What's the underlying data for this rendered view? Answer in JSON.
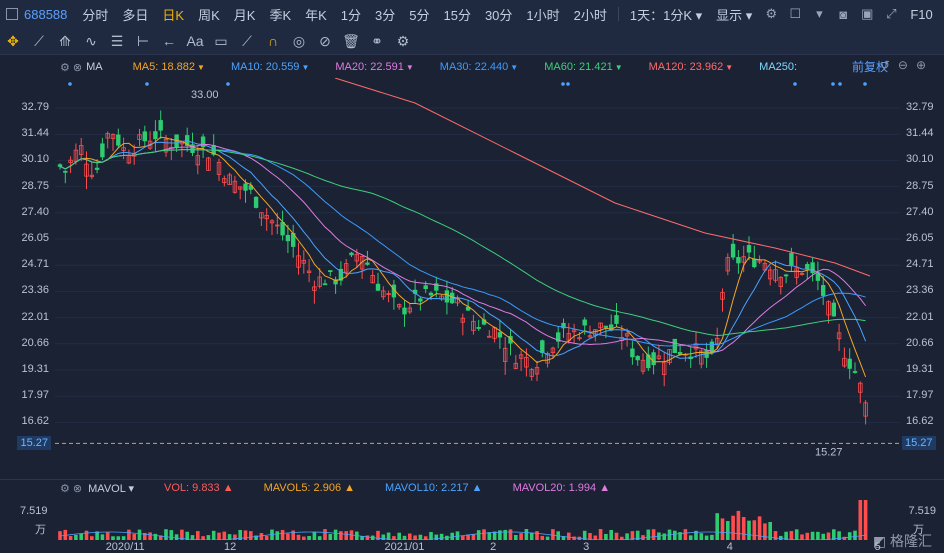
{
  "toolbar": {
    "stock_code": "688588",
    "periods": [
      "分时",
      "多日",
      "日K",
      "周K",
      "月K",
      "季K",
      "年K",
      "1分",
      "3分",
      "5分",
      "15分",
      "30分",
      "1小时",
      "2小时"
    ],
    "active_period": "日K",
    "range_select": "1天：1分K",
    "display_label": "显示",
    "fio_label": "F10"
  },
  "ma_bar": {
    "label": "MA",
    "items": [
      {
        "text": "MA5: 18.882",
        "color": "#f5a623"
      },
      {
        "text": "MA10: 20.559",
        "color": "#4aa3ff"
      },
      {
        "text": "MA20: 22.591",
        "color": "#e07be0"
      },
      {
        "text": "MA30: 22.440",
        "color": "#3b9cff"
      },
      {
        "text": "MA60: 21.421",
        "color": "#3fcf7a"
      },
      {
        "text": "MA120: 23.962",
        "color": "#ff6b6b"
      },
      {
        "text": "MA250:",
        "color": "#7fd8ff"
      }
    ],
    "fuquan": "前复权"
  },
  "price_axis": {
    "labels": [
      "32.79",
      "31.44",
      "30.10",
      "28.75",
      "27.40",
      "26.05",
      "24.71",
      "23.36",
      "22.01",
      "20.66",
      "19.31",
      "17.97",
      "16.62"
    ],
    "current": "15.27",
    "high_label": "33.00",
    "low_label": "15.27"
  },
  "volume_bar": {
    "label": "MAVOL",
    "items": [
      {
        "text": "VOL: 9.833",
        "color": "#ff5a5a"
      },
      {
        "text": "MAVOL5: 2.906",
        "color": "#f5a623"
      },
      {
        "text": "MAVOL10: 2.217",
        "color": "#4aa3ff"
      },
      {
        "text": "MAVOL20: 1.994",
        "color": "#e07be0"
      }
    ],
    "axis_value": "7.519",
    "axis_unit": "万"
  },
  "dates": [
    {
      "label": "2020/11",
      "pos": 0.06
    },
    {
      "label": "12",
      "pos": 0.2
    },
    {
      "label": "2021/01",
      "pos": 0.39
    },
    {
      "label": "2",
      "pos": 0.515
    },
    {
      "label": "3",
      "pos": 0.625
    },
    {
      "label": "4",
      "pos": 0.795
    },
    {
      "label": "5",
      "pos": 0.97
    }
  ],
  "watermark": "格隆汇"
}
